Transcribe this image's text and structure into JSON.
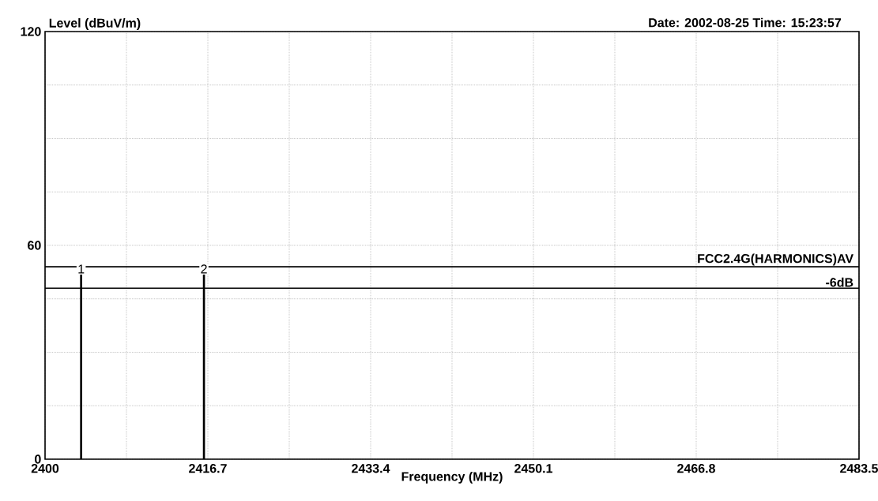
{
  "chart_data": {
    "type": "bar",
    "ylabel": "Level (dBuV/m)",
    "xlabel": "Frequency (MHz)",
    "x": [
      2403.7,
      2416.3
    ],
    "values": [
      51.8,
      51.8
    ],
    "color": "#000000",
    "xlim": [
      2400,
      2483.5
    ],
    "xticks": [
      2400,
      {
        "value": 2408.35,
        "label": null
      },
      2416.7,
      {
        "value": 2425.05,
        "label": null
      },
      2433.4,
      {
        "value": 2441.75,
        "label": null
      },
      2450.1,
      {
        "value": 2458.45,
        "label": null
      },
      2466.8,
      {
        "value": 2475.15,
        "label": null
      },
      2483.5
    ],
    "ylim": [
      0,
      120
    ],
    "yticks": [
      0,
      {
        "value": 15,
        "label": null
      },
      {
        "value": 30,
        "label": null
      },
      {
        "value": 45,
        "label": null
      },
      60,
      {
        "value": 75,
        "label": null
      },
      {
        "value": 90,
        "label": null
      },
      {
        "value": 105,
        "label": null
      },
      120
    ],
    "grid": true,
    "ref_lines": [
      {
        "axis": "y",
        "value": 54,
        "label": "FCC2.4G(HARMONICS)AV",
        "color": "#000000"
      },
      {
        "axis": "y",
        "value": 48,
        "label": "-6dB",
        "color": "#000000"
      }
    ],
    "annotations": [
      "Date: 2002-08-25  Time: 15:23:57",
      {
        "text": "1",
        "x": 2403.7,
        "y": 51.8
      },
      {
        "text": "2",
        "x": 2416.3,
        "y": 51.8
      }
    ]
  }
}
